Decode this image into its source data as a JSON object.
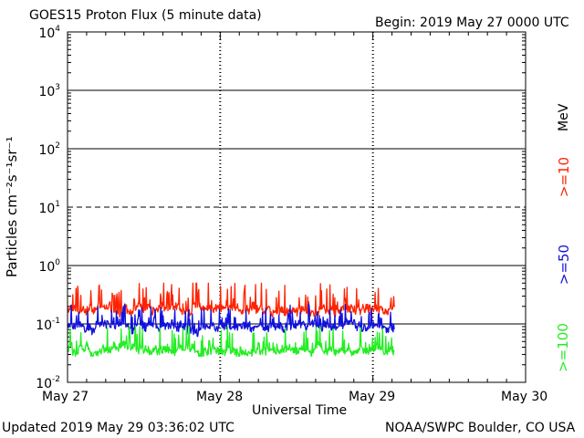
{
  "header": {
    "title": "GOES15 Proton Flux (5 minute data)",
    "begin": "Begin: 2019 May 27 0000 UTC"
  },
  "footer": {
    "updated": "Updated 2019 May 29 03:36:02 UTC",
    "source": "NOAA/SWPC Boulder, CO USA"
  },
  "chart_data": {
    "type": "line",
    "xlabel": "Universal Time",
    "ylabel": "Particles cm⁻²s⁻¹sr⁻¹",
    "scale_y": "log",
    "ylim": [
      0.01,
      10000
    ],
    "xlim_days": [
      0,
      3
    ],
    "x_ticks": [
      "May 27",
      "May 28",
      "May 29",
      "May 30"
    ],
    "y_ticks": [
      {
        "base": "10",
        "exp": "4"
      },
      {
        "base": "10",
        "exp": "3"
      },
      {
        "base": "10",
        "exp": "2"
      },
      {
        "base": "10",
        "exp": "1"
      },
      {
        "base": "10",
        "exp": "0"
      },
      {
        "base": "10",
        "exp": "-1"
      },
      {
        "base": "10",
        "exp": "-2"
      }
    ],
    "reference_lines": [
      {
        "y": 1000,
        "style": "solid"
      },
      {
        "y": 100,
        "style": "solid"
      },
      {
        "y": 10,
        "style": "dashed"
      },
      {
        "y": 1,
        "style": "solid"
      },
      {
        "y": 0.1,
        "style": "solid"
      }
    ],
    "units_label": "MeV",
    "series": [
      {
        "name": ">=10",
        "color": "#ff2200",
        "x_range_days": [
          0,
          2.14
        ],
        "typical": 0.18,
        "min": 0.12,
        "max": 0.5
      },
      {
        "name": ">=50",
        "color": "#1111dd",
        "x_range_days": [
          0,
          2.14
        ],
        "typical": 0.09,
        "min": 0.06,
        "max": 0.22
      },
      {
        "name": ">=100",
        "color": "#22ee22",
        "x_range_days": [
          0,
          2.14
        ],
        "typical": 0.035,
        "min": 0.028,
        "max": 0.09
      }
    ]
  }
}
